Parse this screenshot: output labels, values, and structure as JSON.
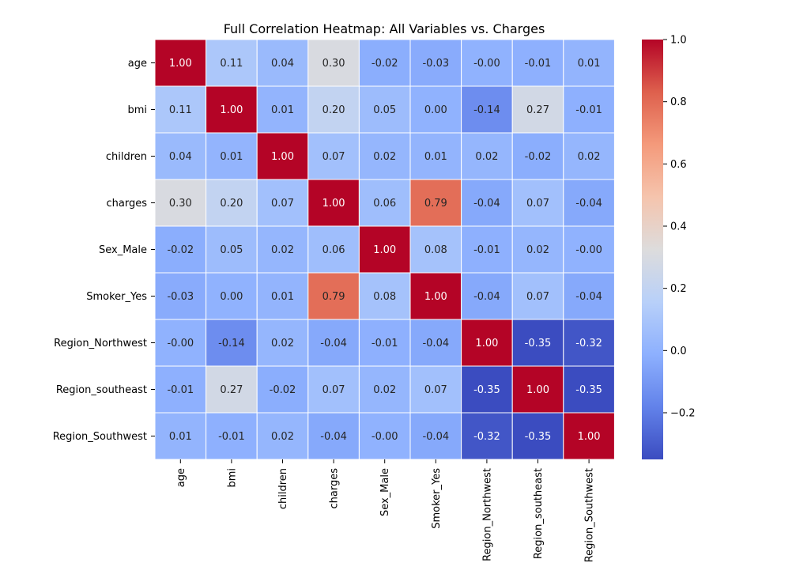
{
  "chart_data": {
    "type": "heatmap",
    "title": "Full Correlation Heatmap: All Variables vs. Charges",
    "xlabel": "",
    "ylabel": "",
    "rows": [
      "age",
      "bmi",
      "children",
      "charges",
      "Sex_Male",
      "Smoker_Yes",
      "Region_Northwest",
      "Region_southeast",
      "Region_Southwest"
    ],
    "columns": [
      "age",
      "bmi",
      "children",
      "charges",
      "Sex_Male",
      "Smoker_Yes",
      "Region_Northwest",
      "Region_southeast",
      "Region_Southwest"
    ],
    "values": [
      [
        1.0,
        0.11,
        0.04,
        0.3,
        -0.02,
        -0.03,
        -0.0,
        -0.01,
        0.01
      ],
      [
        0.11,
        1.0,
        0.01,
        0.2,
        0.05,
        0.0,
        -0.14,
        0.27,
        -0.01
      ],
      [
        0.04,
        0.01,
        1.0,
        0.07,
        0.02,
        0.01,
        0.02,
        -0.02,
        0.02
      ],
      [
        0.3,
        0.2,
        0.07,
        1.0,
        0.06,
        0.79,
        -0.04,
        0.07,
        -0.04
      ],
      [
        -0.02,
        0.05,
        0.02,
        0.06,
        1.0,
        0.08,
        -0.01,
        0.02,
        -0.0
      ],
      [
        -0.03,
        0.0,
        0.01,
        0.79,
        0.08,
        1.0,
        -0.04,
        0.07,
        -0.04
      ],
      [
        -0.0,
        -0.14,
        0.02,
        -0.04,
        -0.01,
        -0.04,
        1.0,
        -0.35,
        -0.32
      ],
      [
        -0.01,
        0.27,
        -0.02,
        0.07,
        0.02,
        0.07,
        -0.35,
        1.0,
        -0.35
      ],
      [
        0.01,
        -0.01,
        0.02,
        -0.04,
        -0.0,
        -0.04,
        -0.32,
        -0.35,
        1.0
      ]
    ],
    "value_labels": [
      [
        "1.00",
        "0.11",
        "0.04",
        "0.30",
        "-0.02",
        "-0.03",
        "-0.00",
        "-0.01",
        "0.01"
      ],
      [
        "0.11",
        "1.00",
        "0.01",
        "0.20",
        "0.05",
        "0.00",
        "-0.14",
        "0.27",
        "-0.01"
      ],
      [
        "0.04",
        "0.01",
        "1.00",
        "0.07",
        "0.02",
        "0.01",
        "0.02",
        "-0.02",
        "0.02"
      ],
      [
        "0.30",
        "0.20",
        "0.07",
        "1.00",
        "0.06",
        "0.79",
        "-0.04",
        "0.07",
        "-0.04"
      ],
      [
        "-0.02",
        "0.05",
        "0.02",
        "0.06",
        "1.00",
        "0.08",
        "-0.01",
        "0.02",
        "-0.00"
      ],
      [
        "-0.03",
        "0.00",
        "0.01",
        "0.79",
        "0.08",
        "1.00",
        "-0.04",
        "0.07",
        "-0.04"
      ],
      [
        "-0.00",
        "-0.14",
        "0.02",
        "-0.04",
        "-0.01",
        "-0.04",
        "1.00",
        "-0.35",
        "-0.32"
      ],
      [
        "-0.01",
        "0.27",
        "-0.02",
        "0.07",
        "0.02",
        "0.07",
        "-0.35",
        "1.00",
        "-0.35"
      ],
      [
        "0.01",
        "-0.01",
        "0.02",
        "-0.04",
        "-0.00",
        "-0.04",
        "-0.32",
        "-0.35",
        "1.00"
      ]
    ],
    "colormap": "coolwarm",
    "vmin": -0.35,
    "vmax": 1.0,
    "colorbar_ticks": [
      1.0,
      0.8,
      0.6,
      0.4,
      0.2,
      0.0,
      -0.2
    ],
    "colorbar_tick_labels": [
      "1.0",
      "0.8",
      "0.6",
      "0.4",
      "0.2",
      "0.0",
      "−0.2"
    ],
    "colors": {
      "low": "#3b4cc0",
      "mid": "#dddcdc",
      "high": "#b40426",
      "cell_border": "#ffffff"
    },
    "grid": false,
    "legend": "colorbar-right"
  }
}
